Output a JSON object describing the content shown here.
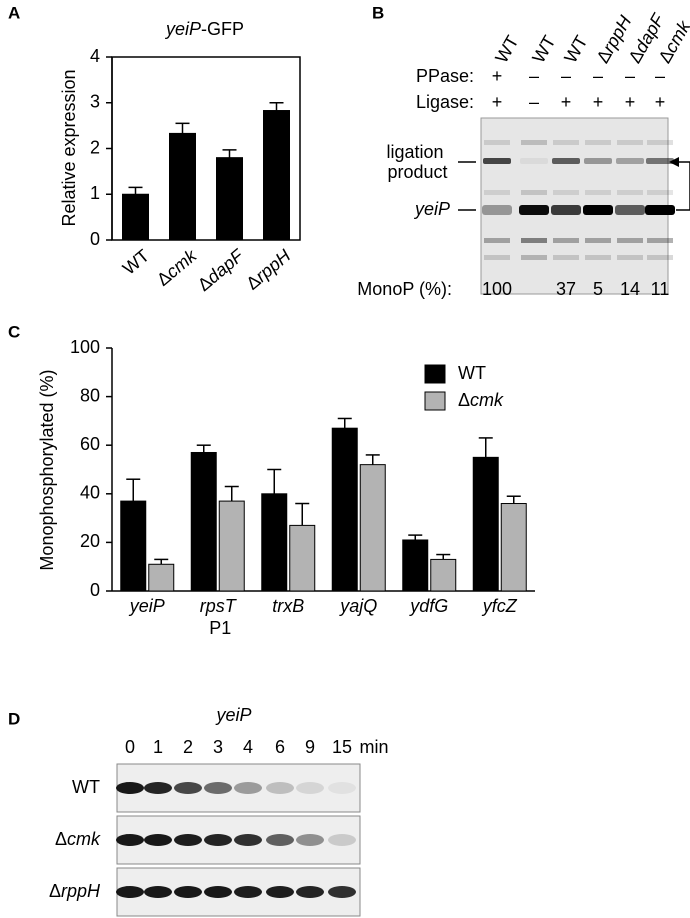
{
  "chart_data": [
    {
      "type": "bar",
      "panel": "A",
      "title": "yeiP-GFP",
      "y_label": "Relative expression",
      "categories": [
        "WT",
        "Δcmk",
        "ΔdapF",
        "ΔrppH"
      ],
      "values": [
        1.0,
        2.33,
        1.8,
        2.83
      ],
      "errors": [
        0.15,
        0.22,
        0.17,
        0.17
      ],
      "color": "#000000",
      "ylim": [
        0,
        4
      ],
      "yticks": [
        0,
        1,
        2,
        3,
        4
      ],
      "grid": false
    },
    {
      "type": "grouped_bar",
      "panel": "C",
      "y_label": "Monophosphorylated (%)",
      "categories": [
        "yeiP",
        "rpsT P1",
        "trxB",
        "yajQ",
        "ydfG",
        "yfcZ"
      ],
      "series": [
        {
          "name": "WT",
          "color": "#000000",
          "values": [
            37,
            57,
            40,
            67,
            21,
            55
          ],
          "errors": [
            9,
            3,
            10,
            4,
            2,
            8
          ]
        },
        {
          "name": "Δcmk",
          "color": "#b3b3b3",
          "values": [
            11,
            37,
            27,
            52,
            13,
            36
          ],
          "errors": [
            2,
            6,
            9,
            4,
            2,
            3
          ]
        }
      ],
      "ylim": [
        0,
        100
      ],
      "yticks": [
        0,
        20,
        40,
        60,
        80,
        100
      ],
      "grid": false,
      "legend": "top-right"
    }
  ],
  "gel_b": {
    "panel": "B",
    "lanes": [
      "WT",
      "WT",
      "WT",
      "ΔrppH",
      "ΔdapF",
      "Δcmk"
    ],
    "ppase_label": "PPase:",
    "ppase": [
      "+",
      "–",
      "–",
      "–",
      "–",
      "–"
    ],
    "ligase_label": "Ligase:",
    "ligase": [
      "+",
      "–",
      "+",
      "+",
      "+",
      "+"
    ],
    "band_product": "ligation product",
    "band_rna": "yeiP",
    "monop_label": "MonoP (%):",
    "monop": [
      100,
      null,
      37,
      5,
      14,
      11
    ]
  },
  "gel_d": {
    "panel": "D",
    "gene": "yeiP",
    "times": [
      0,
      1,
      2,
      3,
      4,
      6,
      9,
      15
    ],
    "time_unit": "min",
    "strains": [
      "WT",
      "Δcmk",
      "ΔrppH"
    ]
  }
}
